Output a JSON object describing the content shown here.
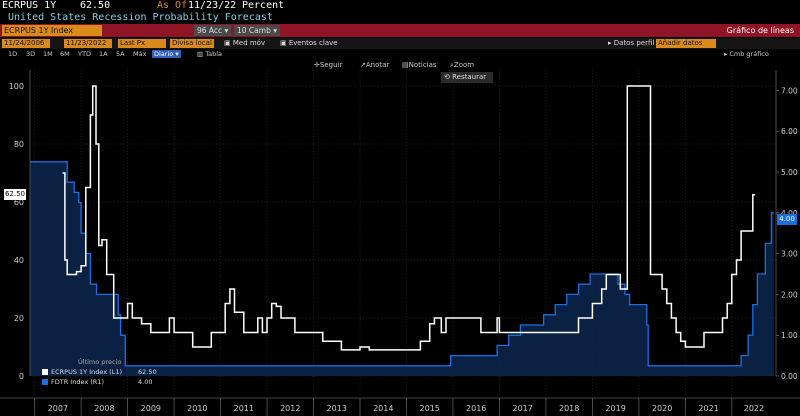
{
  "header": {
    "ticker": "ECRPUS 1Y",
    "last_value": "62.50",
    "as_of_label": "As Of",
    "as_of_date": "11/23/22",
    "unit": "Percent",
    "subtitle": "United States Recession Probability Forecast"
  },
  "toolbar1": {
    "security": "ECRPUS 1Y Index",
    "actions_button": "96 Acc ▾",
    "change_button": "10 Camb ▾",
    "chart_type": "Gráfico de líneas"
  },
  "toolbar2": {
    "start_date": "11/24/2006",
    "end_date": "11/23/2022",
    "field": "Last Px",
    "currency": "Divisa local",
    "moving_avg": "Med móv",
    "events": "Eventos clave",
    "data_label": "Datos perfil",
    "data_field": "Añadir datos"
  },
  "ranges": {
    "items": [
      "1D",
      "3D",
      "1M",
      "6M",
      "YTD",
      "1A",
      "5A",
      "Máx"
    ],
    "frequency": "Diario",
    "table": "Tabla"
  },
  "chart_tools": {
    "follow": "Seguir",
    "annotate": "Anotar",
    "news": "Noticias",
    "zoom": "Zoom",
    "restore": "Restaurar",
    "change_chart": "Cmb gráfico"
  },
  "legend": {
    "title": "Último precio",
    "items": [
      {
        "label": "ECRPUS 1Y Index (L1)",
        "value": "62.50",
        "color": "#ffffff"
      },
      {
        "label": "FDTR Index (R1)",
        "value": "4.00",
        "color": "#1a6fe0"
      }
    ]
  },
  "labels": {
    "last_left": "62.50",
    "last_right": "4.00"
  },
  "chart_data": {
    "type": "line",
    "title": "United States Recession Probability Forecast",
    "x_ticks": [
      "2007",
      "2008",
      "2009",
      "2010",
      "2011",
      "2012",
      "2013",
      "2014",
      "2015",
      "2016",
      "2017",
      "2018",
      "2019",
      "2020",
      "2021",
      "2022"
    ],
    "y_left": {
      "ticks": [
        "0",
        "20",
        "40",
        "60",
        "80",
        "100"
      ],
      "lim": [
        0,
        100
      ]
    },
    "y_right": {
      "ticks": [
        "0.00",
        "1.00",
        "2.00",
        "3.00",
        "4.00",
        "5.00",
        "6.00",
        "7.00"
      ],
      "lim": [
        0,
        7.5
      ]
    },
    "series": [
      {
        "name": "ECRPUS 1Y Index (L1)",
        "axis": "left",
        "color": "#ffffff",
        "points": [
          [
            2007.6,
            70
          ],
          [
            2007.65,
            40
          ],
          [
            2007.7,
            35
          ],
          [
            2007.9,
            36
          ],
          [
            2008.0,
            38
          ],
          [
            2008.1,
            65
          ],
          [
            2008.2,
            90
          ],
          [
            2008.25,
            100
          ],
          [
            2008.32,
            80
          ],
          [
            2008.38,
            45
          ],
          [
            2008.45,
            47
          ],
          [
            2008.55,
            35
          ],
          [
            2008.7,
            20
          ],
          [
            2008.9,
            20
          ],
          [
            2009.0,
            25
          ],
          [
            2009.1,
            20
          ],
          [
            2009.3,
            18
          ],
          [
            2009.5,
            15
          ],
          [
            2009.7,
            15
          ],
          [
            2009.9,
            20
          ],
          [
            2010.0,
            15
          ],
          [
            2010.2,
            15
          ],
          [
            2010.4,
            10
          ],
          [
            2010.6,
            10
          ],
          [
            2010.8,
            15
          ],
          [
            2011.0,
            15
          ],
          [
            2011.1,
            25
          ],
          [
            2011.2,
            30
          ],
          [
            2011.3,
            22
          ],
          [
            2011.5,
            15
          ],
          [
            2011.7,
            15
          ],
          [
            2011.8,
            20
          ],
          [
            2011.9,
            15
          ],
          [
            2012.0,
            20
          ],
          [
            2012.1,
            25
          ],
          [
            2012.2,
            24
          ],
          [
            2012.3,
            20
          ],
          [
            2012.5,
            20
          ],
          [
            2012.6,
            15
          ],
          [
            2012.8,
            15
          ],
          [
            2013.0,
            15
          ],
          [
            2013.2,
            12
          ],
          [
            2013.4,
            12
          ],
          [
            2013.6,
            9
          ],
          [
            2013.8,
            9
          ],
          [
            2014.0,
            10
          ],
          [
            2014.2,
            9
          ],
          [
            2014.5,
            9
          ],
          [
            2014.8,
            9
          ],
          [
            2015.0,
            9
          ],
          [
            2015.3,
            12
          ],
          [
            2015.5,
            18
          ],
          [
            2015.6,
            20
          ],
          [
            2015.75,
            15
          ],
          [
            2015.85,
            20
          ],
          [
            2016.0,
            20
          ],
          [
            2016.3,
            20
          ],
          [
            2016.6,
            15
          ],
          [
            2016.8,
            15
          ],
          [
            2016.95,
            20
          ],
          [
            2017.0,
            15
          ],
          [
            2017.3,
            15
          ],
          [
            2017.6,
            15
          ],
          [
            2017.9,
            15
          ],
          [
            2018.1,
            15
          ],
          [
            2018.3,
            15
          ],
          [
            2018.6,
            15
          ],
          [
            2018.7,
            20
          ],
          [
            2018.9,
            20
          ],
          [
            2019.0,
            25
          ],
          [
            2019.2,
            30
          ],
          [
            2019.3,
            35
          ],
          [
            2019.5,
            35
          ],
          [
            2019.6,
            30
          ],
          [
            2019.7,
            30
          ],
          [
            2019.75,
            100
          ],
          [
            2020.2,
            100
          ],
          [
            2020.25,
            35
          ],
          [
            2020.35,
            35
          ],
          [
            2020.5,
            30
          ],
          [
            2020.6,
            25
          ],
          [
            2020.7,
            20
          ],
          [
            2020.8,
            15
          ],
          [
            2020.9,
            12
          ],
          [
            2021.0,
            10
          ],
          [
            2021.2,
            10
          ],
          [
            2021.3,
            10
          ],
          [
            2021.4,
            15
          ],
          [
            2021.6,
            15
          ],
          [
            2021.8,
            20
          ],
          [
            2021.9,
            25
          ],
          [
            2022.0,
            35
          ],
          [
            2022.1,
            40
          ],
          [
            2022.2,
            50
          ],
          [
            2022.35,
            50
          ],
          [
            2022.45,
            62.5
          ],
          [
            2022.5,
            62.5
          ]
        ]
      },
      {
        "name": "FDTR Index (R1)",
        "axis": "right",
        "color": "#1a6fe0",
        "points": [
          [
            2006.9,
            5.25
          ],
          [
            2007.6,
            5.25
          ],
          [
            2007.7,
            4.75
          ],
          [
            2007.85,
            4.5
          ],
          [
            2007.95,
            4.25
          ],
          [
            2008.0,
            3.5
          ],
          [
            2008.1,
            3.0
          ],
          [
            2008.2,
            2.25
          ],
          [
            2008.33,
            2.0
          ],
          [
            2008.8,
            1.5
          ],
          [
            2008.85,
            1.0
          ],
          [
            2008.95,
            0.25
          ],
          [
            2015.95,
            0.5
          ],
          [
            2016.95,
            0.75
          ],
          [
            2017.2,
            1.0
          ],
          [
            2017.45,
            1.25
          ],
          [
            2017.95,
            1.5
          ],
          [
            2018.2,
            1.75
          ],
          [
            2018.45,
            2.0
          ],
          [
            2018.7,
            2.25
          ],
          [
            2018.95,
            2.5
          ],
          [
            2019.55,
            2.25
          ],
          [
            2019.7,
            2.0
          ],
          [
            2019.8,
            1.75
          ],
          [
            2020.17,
            1.25
          ],
          [
            2020.2,
            0.25
          ],
          [
            2022.2,
            0.5
          ],
          [
            2022.35,
            1.0
          ],
          [
            2022.45,
            1.75
          ],
          [
            2022.55,
            2.5
          ],
          [
            2022.72,
            3.25
          ],
          [
            2022.85,
            4.0
          ],
          [
            2022.9,
            4.0
          ]
        ]
      }
    ]
  }
}
